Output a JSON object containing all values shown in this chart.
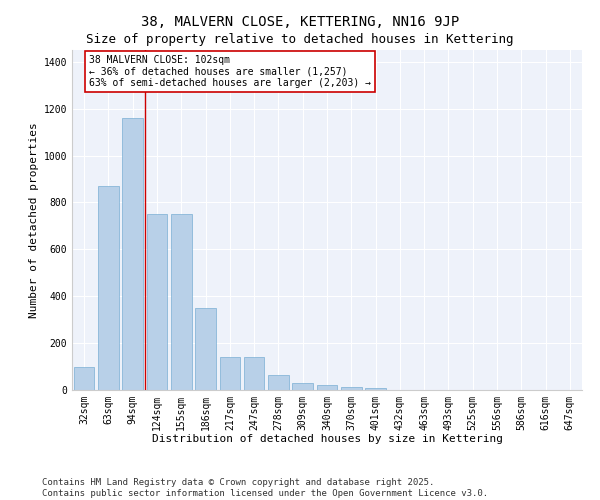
{
  "title": "38, MALVERN CLOSE, KETTERING, NN16 9JP",
  "subtitle": "Size of property relative to detached houses in Kettering",
  "xlabel": "Distribution of detached houses by size in Kettering",
  "ylabel": "Number of detached properties",
  "categories": [
    "32sqm",
    "63sqm",
    "94sqm",
    "124sqm",
    "155sqm",
    "186sqm",
    "217sqm",
    "247sqm",
    "278sqm",
    "309sqm",
    "340sqm",
    "370sqm",
    "401sqm",
    "432sqm",
    "463sqm",
    "493sqm",
    "525sqm",
    "556sqm",
    "586sqm",
    "616sqm",
    "647sqm"
  ],
  "values": [
    100,
    870,
    1160,
    750,
    750,
    350,
    140,
    140,
    65,
    30,
    20,
    12,
    8,
    0,
    0,
    0,
    0,
    0,
    0,
    0,
    0
  ],
  "bar_color": "#b8d0e8",
  "bar_edge_color": "#7aafd4",
  "vline_x": 2.5,
  "vline_color": "#cc0000",
  "annotation_title": "38 MALVERN CLOSE: 102sqm",
  "annotation_line2": "← 36% of detached houses are smaller (1,257)",
  "annotation_line3": "63% of semi-detached houses are larger (2,203) →",
  "annotation_box_color": "#cc0000",
  "annotation_box_fill": "#ffffff",
  "ylim": [
    0,
    1450
  ],
  "yticks": [
    0,
    200,
    400,
    600,
    800,
    1000,
    1200,
    1400
  ],
  "background_color": "#eef2fa",
  "footer1": "Contains HM Land Registry data © Crown copyright and database right 2025.",
  "footer2": "Contains public sector information licensed under the Open Government Licence v3.0.",
  "title_fontsize": 10,
  "subtitle_fontsize": 9,
  "axis_label_fontsize": 8,
  "tick_fontsize": 7,
  "annotation_fontsize": 7,
  "footer_fontsize": 6.5
}
